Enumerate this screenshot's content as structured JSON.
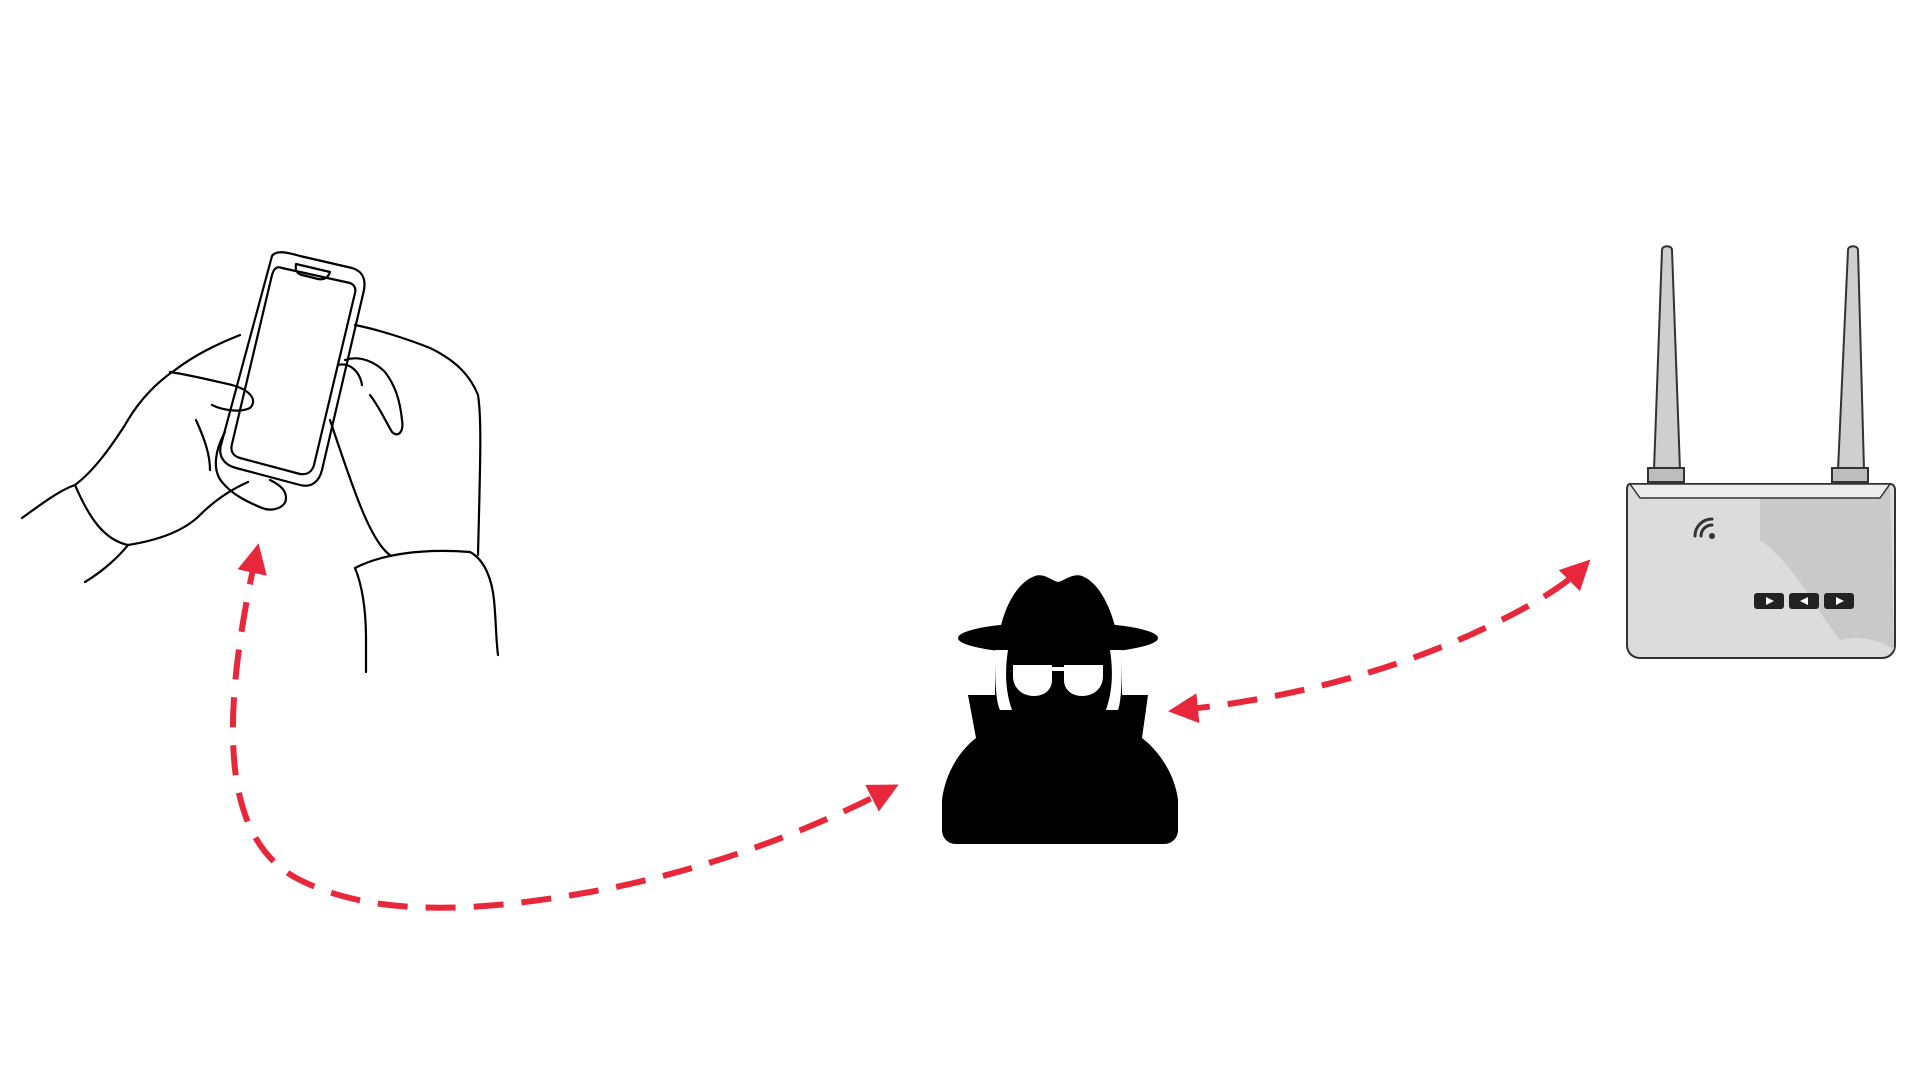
{
  "diagram": {
    "background": "#ffffff",
    "nodes": [
      {
        "id": "user-phone",
        "icon": "hands-holding-phone-icon",
        "style": "black line drawing"
      },
      {
        "id": "attacker",
        "icon": "spy-hacker-icon",
        "style": "black silhouette"
      },
      {
        "id": "router",
        "icon": "wifi-router-icon",
        "style": "grey router with two antennas"
      }
    ],
    "connections": [
      {
        "from": "user-phone",
        "to": "attacker",
        "style": "dashed",
        "arrows": "both"
      },
      {
        "from": "attacker",
        "to": "router",
        "style": "dashed",
        "arrows": "both"
      }
    ],
    "colors": {
      "arrow": "#e8283a",
      "line_art": "#000000",
      "router_body": "#d9d9d9",
      "router_shade": "#c4c4c4"
    }
  }
}
